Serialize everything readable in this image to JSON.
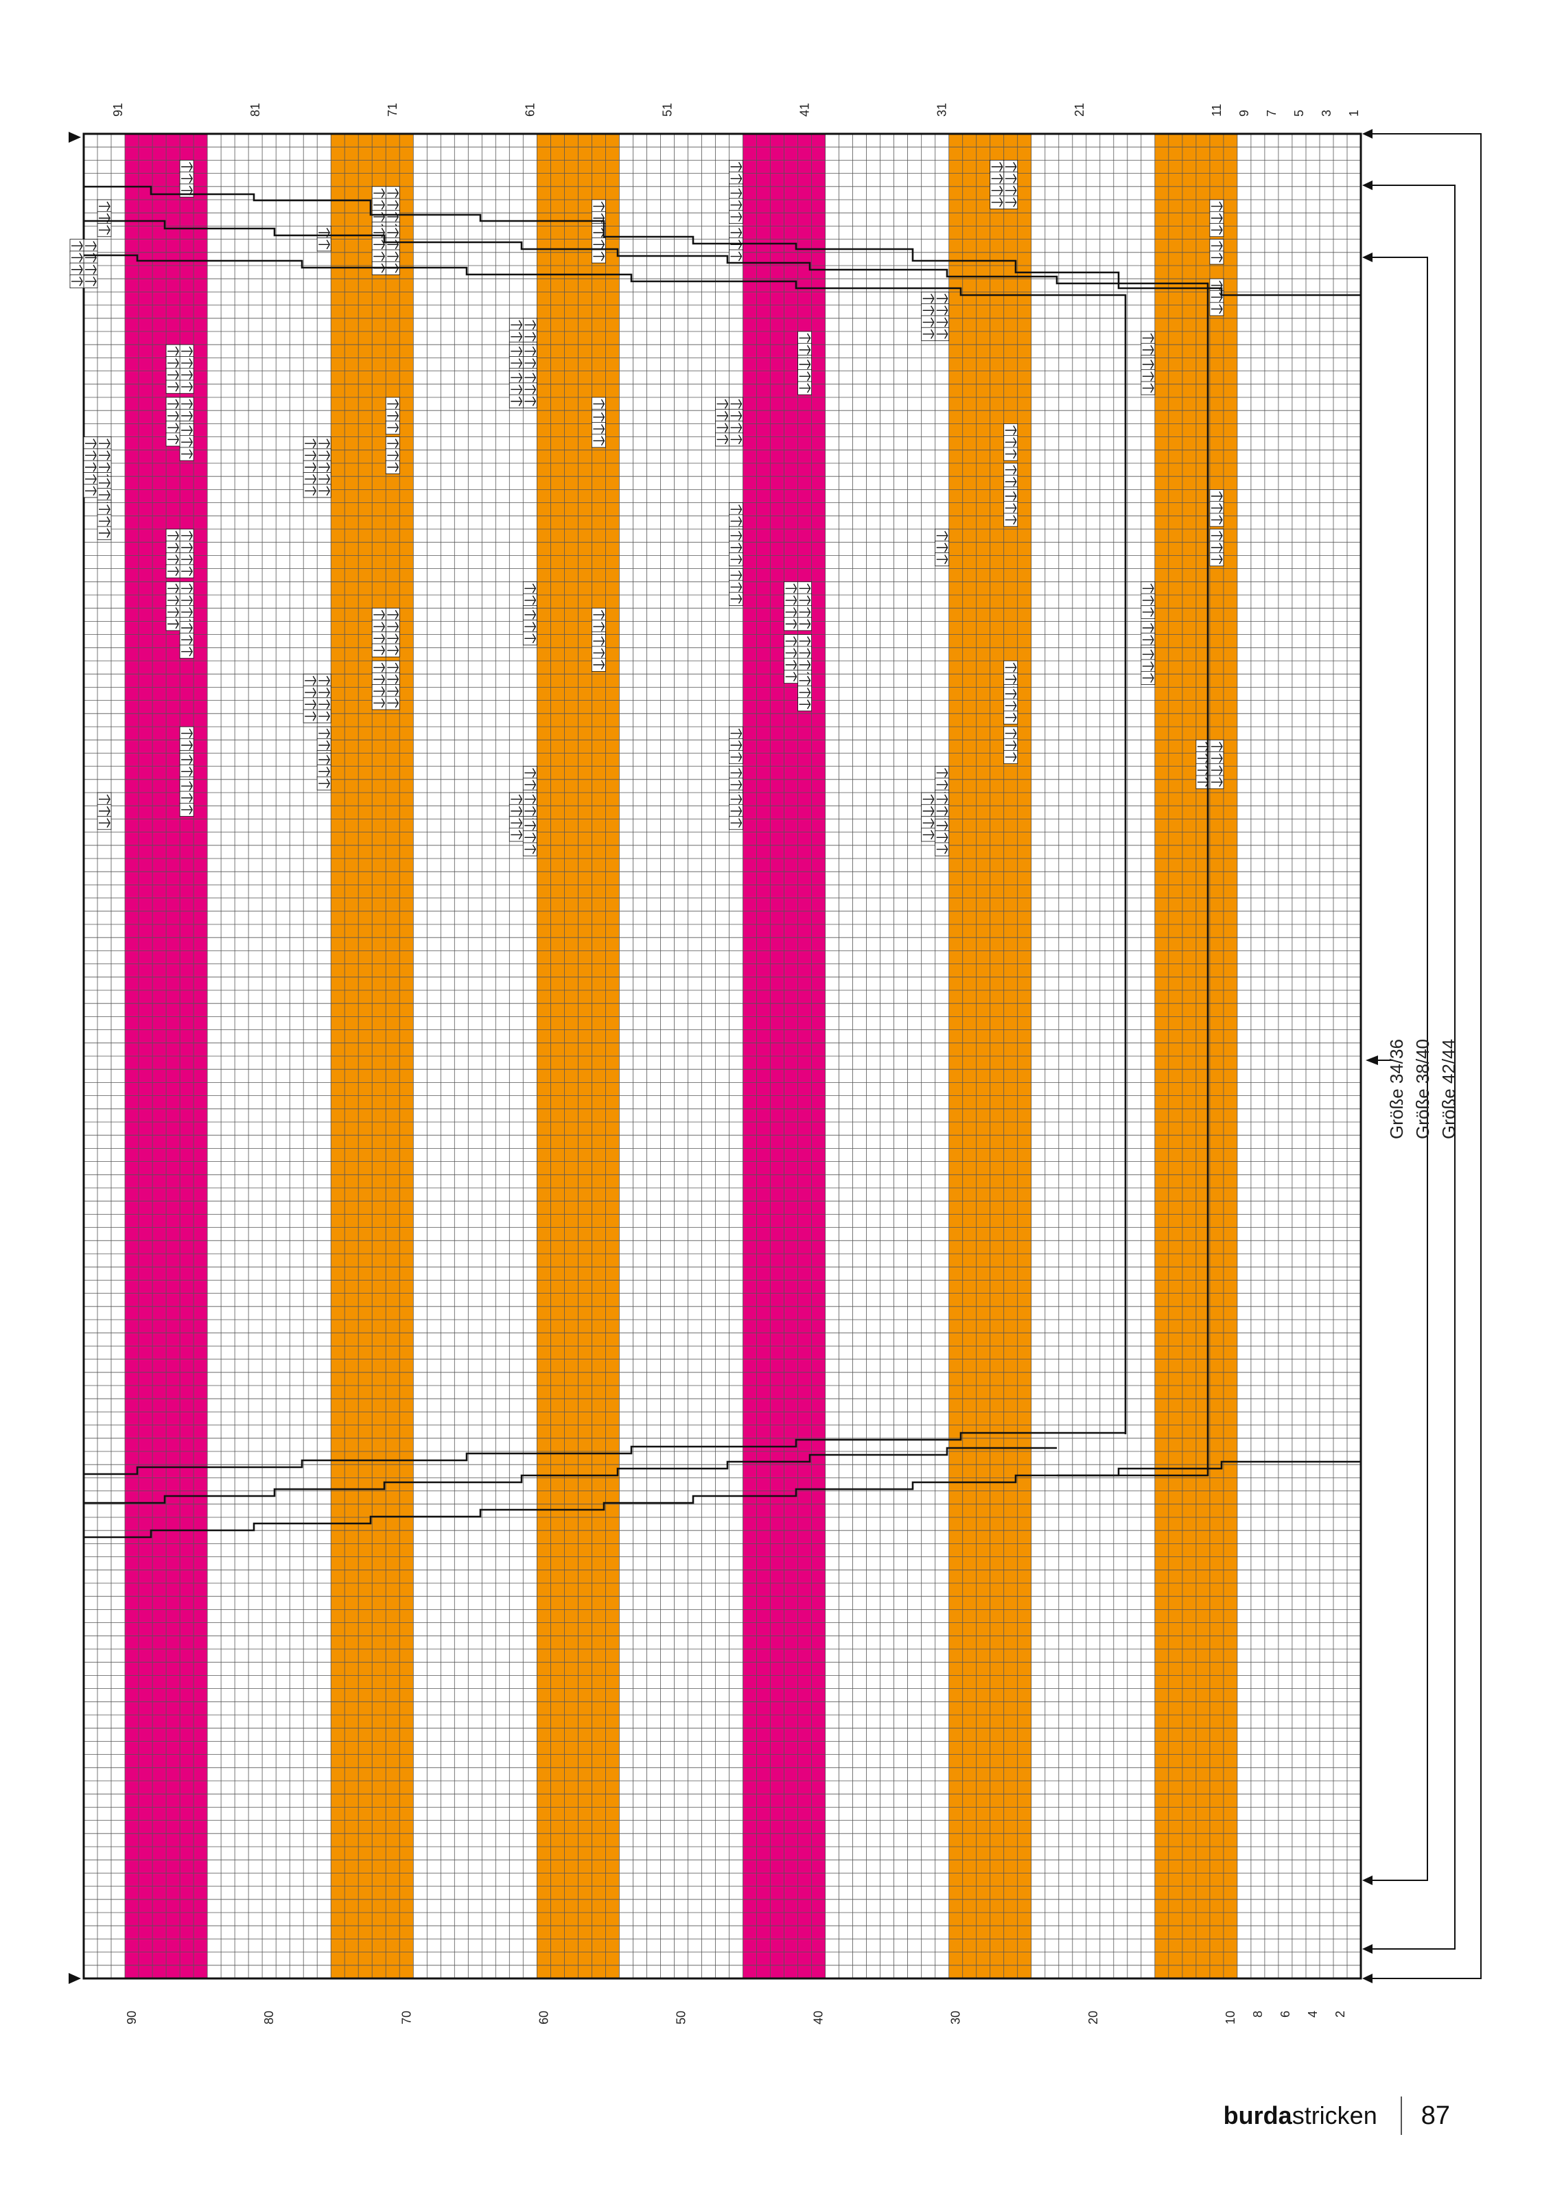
{
  "chart": {
    "row_labels_top": [
      "91",
      "81",
      "71",
      "61",
      "51",
      "41",
      "31",
      "21",
      "11",
      "9",
      "7",
      "5",
      "3",
      "1"
    ],
    "row_labels_bottom": [
      "90",
      "80",
      "70",
      "60",
      "50",
      "40",
      "30",
      "20",
      "10",
      "8",
      "6",
      "4",
      "2"
    ],
    "sizes": [
      "Größe 34/36",
      "Größe 38/40",
      "Größe 42/44"
    ],
    "colors": {
      "magenta": "#e5007e",
      "orange": "#f39200",
      "grid": "#555555",
      "line": "#111111"
    },
    "stripes": [
      {
        "color": "magenta",
        "from": 85,
        "to": 90
      },
      {
        "color": "orange",
        "from": 70,
        "to": 75
      },
      {
        "color": "orange",
        "from": 55,
        "to": 60
      },
      {
        "color": "magenta",
        "from": 40,
        "to": 45
      },
      {
        "color": "orange",
        "from": 25,
        "to": 30
      },
      {
        "color": "orange",
        "from": 10,
        "to": 15
      }
    ]
  },
  "footer": {
    "brand_bold": "burda",
    "brand_regular": "stricken",
    "page": "87"
  }
}
